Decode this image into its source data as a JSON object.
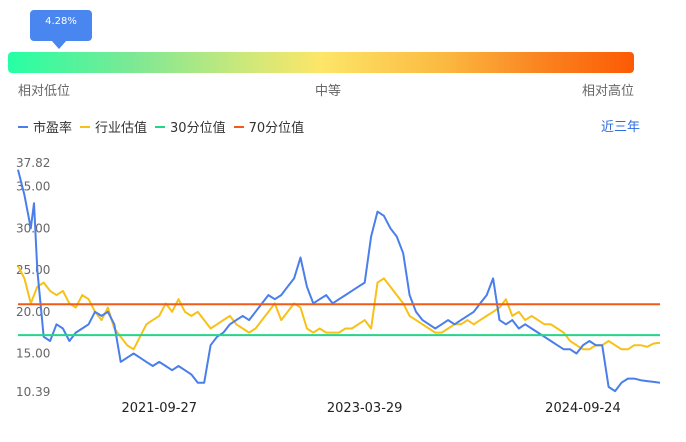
{
  "gauge": {
    "percent_label": "4.28%",
    "percent": 4.28,
    "low_label": "相对低位",
    "mid_label": "中等",
    "high_label": "相对高位"
  },
  "range_button": "近三年",
  "colors": {
    "pe": "#4a7eea",
    "industry": "#f7c118",
    "p30": "#22d68a",
    "p70": "#f25b17"
  },
  "chart_data": {
    "type": "line",
    "title": "",
    "xlabel": "",
    "ylabel": "",
    "ylim": [
      10.39,
      37.82
    ],
    "ytick_labels": [
      "37.82",
      "35.00",
      "30.00",
      "25.00",
      "20.00",
      "15.00",
      "10.39"
    ],
    "yticks": [
      37.82,
      35,
      30,
      25,
      20,
      15,
      10.39
    ],
    "xtick_labels": [
      "2021-09-27",
      "2023-03-29",
      "2024-09-24"
    ],
    "xtick_pos": [
      0.22,
      0.54,
      0.88
    ],
    "legend": [
      "市盈率",
      "行业估值",
      "30分位值",
      "70分位值"
    ],
    "reference_lines": [
      {
        "name": "30分位值",
        "value": 17.2
      },
      {
        "name": "70分位值",
        "value": 20.9
      }
    ],
    "series": [
      {
        "name": "市盈率",
        "x": [
          0,
          0.01,
          0.02,
          0.025,
          0.03,
          0.04,
          0.05,
          0.06,
          0.07,
          0.08,
          0.09,
          0.1,
          0.11,
          0.12,
          0.13,
          0.14,
          0.15,
          0.16,
          0.17,
          0.18,
          0.19,
          0.2,
          0.21,
          0.22,
          0.23,
          0.24,
          0.25,
          0.26,
          0.27,
          0.28,
          0.29,
          0.3,
          0.31,
          0.32,
          0.33,
          0.34,
          0.35,
          0.36,
          0.37,
          0.38,
          0.39,
          0.4,
          0.41,
          0.42,
          0.43,
          0.44,
          0.45,
          0.46,
          0.47,
          0.48,
          0.49,
          0.5,
          0.51,
          0.52,
          0.53,
          0.54,
          0.55,
          0.56,
          0.57,
          0.58,
          0.59,
          0.6,
          0.61,
          0.62,
          0.63,
          0.64,
          0.65,
          0.66,
          0.67,
          0.68,
          0.69,
          0.7,
          0.71,
          0.72,
          0.73,
          0.74,
          0.75,
          0.76,
          0.77,
          0.78,
          0.79,
          0.8,
          0.81,
          0.82,
          0.83,
          0.84,
          0.85,
          0.86,
          0.87,
          0.88,
          0.89,
          0.9,
          0.91,
          0.92,
          0.93,
          0.94,
          0.95,
          0.96,
          0.97,
          0.98,
          0.99,
          1
        ],
        "y": [
          37,
          34,
          30,
          33,
          25,
          17,
          16.5,
          18.5,
          18,
          16.5,
          17.5,
          18,
          18.5,
          20,
          19.5,
          20,
          18.5,
          14,
          14.5,
          15,
          14.5,
          14,
          13.5,
          14,
          13.5,
          13,
          13.5,
          13,
          12.5,
          11.5,
          11.5,
          16,
          17,
          17.5,
          18.5,
          19,
          19.5,
          19,
          20,
          21,
          22,
          21.5,
          22,
          23,
          24,
          26.5,
          23,
          21,
          21.5,
          22,
          21,
          21.5,
          22,
          22.5,
          23,
          23.5,
          29,
          32,
          31.5,
          30,
          29,
          27,
          22,
          20,
          19,
          18.5,
          18,
          18.5,
          19,
          18.5,
          19,
          19.5,
          20,
          21,
          22,
          24,
          19,
          18.5,
          19,
          18,
          18.5,
          18,
          17.5,
          17,
          16.5,
          16,
          15.5,
          15.5,
          15,
          16,
          16.5,
          16,
          16,
          11,
          10.5,
          11.5,
          12,
          12,
          11.8,
          11.7,
          11.6,
          11.5
        ]
      },
      {
        "name": "行业估值",
        "x": [
          0,
          0.01,
          0.02,
          0.03,
          0.04,
          0.05,
          0.06,
          0.07,
          0.08,
          0.09,
          0.1,
          0.11,
          0.12,
          0.13,
          0.14,
          0.15,
          0.16,
          0.17,
          0.18,
          0.19,
          0.2,
          0.21,
          0.22,
          0.23,
          0.24,
          0.25,
          0.26,
          0.27,
          0.28,
          0.29,
          0.3,
          0.31,
          0.32,
          0.33,
          0.34,
          0.35,
          0.36,
          0.37,
          0.38,
          0.39,
          0.4,
          0.41,
          0.42,
          0.43,
          0.44,
          0.45,
          0.46,
          0.47,
          0.48,
          0.49,
          0.5,
          0.51,
          0.52,
          0.53,
          0.54,
          0.55,
          0.56,
          0.57,
          0.58,
          0.59,
          0.6,
          0.61,
          0.62,
          0.63,
          0.64,
          0.65,
          0.66,
          0.67,
          0.68,
          0.69,
          0.7,
          0.71,
          0.72,
          0.73,
          0.74,
          0.75,
          0.76,
          0.77,
          0.78,
          0.79,
          0.8,
          0.81,
          0.82,
          0.83,
          0.84,
          0.85,
          0.86,
          0.87,
          0.88,
          0.89,
          0.9,
          0.91,
          0.92,
          0.93,
          0.94,
          0.95,
          0.96,
          0.97,
          0.98,
          0.99,
          1
        ],
        "y": [
          25.5,
          24,
          21,
          23,
          23.5,
          22.5,
          22,
          22.5,
          21,
          20.5,
          22,
          21.5,
          20,
          19,
          20.5,
          18,
          17,
          16,
          15.5,
          17,
          18.5,
          19,
          19.5,
          21,
          20,
          21.5,
          20,
          19.5,
          20,
          19,
          18,
          18.5,
          19,
          19.5,
          18.5,
          18,
          17.5,
          18,
          19,
          20,
          21,
          19,
          20,
          21,
          20.5,
          18,
          17.5,
          18,
          17.5,
          17.5,
          17.5,
          18,
          18,
          18.5,
          19,
          18,
          23.5,
          24,
          23,
          22,
          21,
          19.5,
          19,
          18.5,
          18,
          17.5,
          17.5,
          18,
          18.5,
          18.5,
          19,
          18.5,
          19,
          19.5,
          20,
          20.5,
          21.5,
          19.5,
          20,
          19,
          19.5,
          19,
          18.5,
          18.5,
          18,
          17.5,
          16.5,
          16,
          15.5,
          15.5,
          16,
          16,
          16.5,
          16,
          15.5,
          15.5,
          16,
          16,
          15.8,
          16.2,
          16.3
        ]
      }
    ]
  }
}
